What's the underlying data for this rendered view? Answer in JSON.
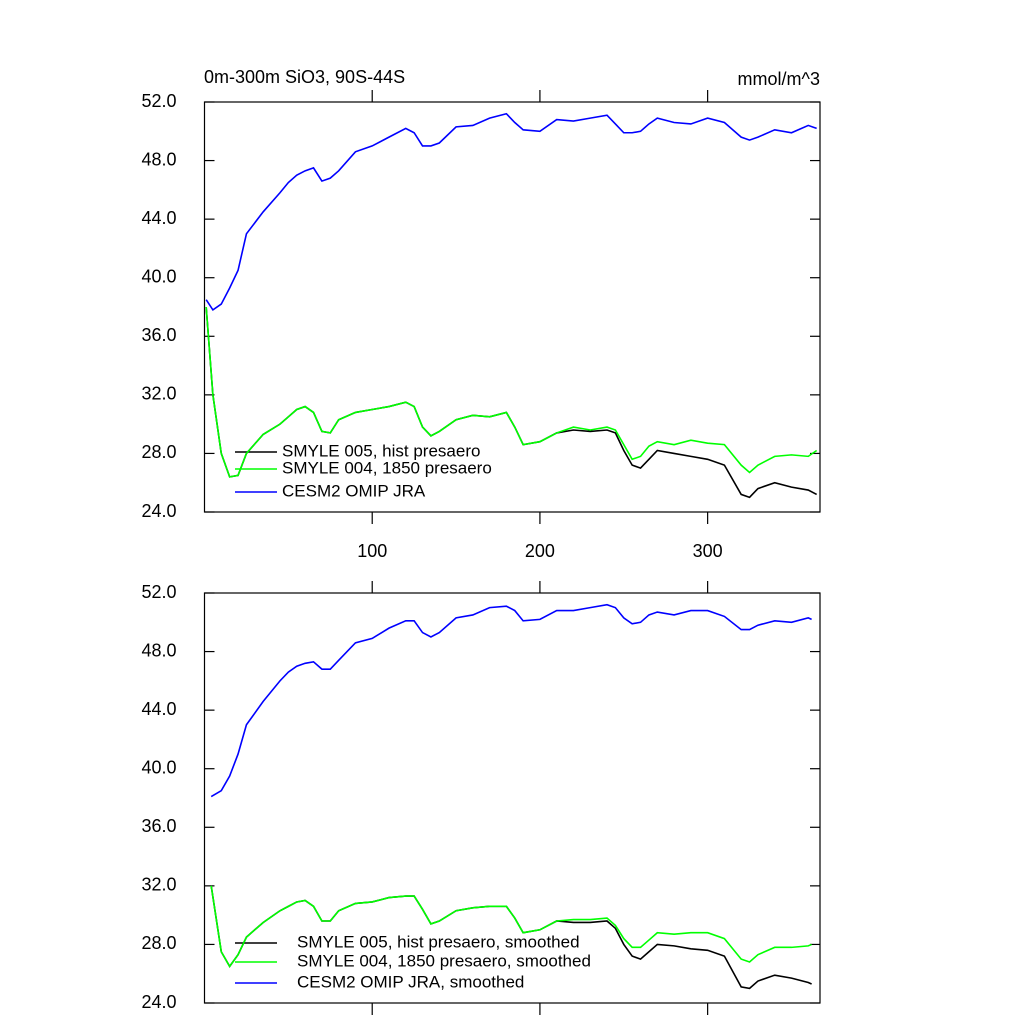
{
  "chart_data": [
    {
      "type": "line",
      "title": "0m-300m SiO3, 90S-44S",
      "units": "mmol/m^3",
      "x": [
        1,
        5,
        10,
        15,
        20,
        25,
        35,
        45,
        50,
        55,
        60,
        65,
        70,
        75,
        80,
        90,
        100,
        110,
        120,
        125,
        130,
        135,
        140,
        150,
        160,
        170,
        180,
        185,
        190,
        200,
        210,
        220,
        230,
        240,
        245,
        250,
        255,
        260,
        265,
        270,
        280,
        290,
        300,
        310,
        320,
        325,
        330,
        340,
        350,
        360,
        365
      ],
      "series": [
        {
          "name": "SMYLE 005, hist presaero",
          "color": "#000000",
          "values": [
            38,
            32,
            28,
            26.4,
            26.5,
            28,
            29.3,
            30,
            30.5,
            31,
            31.2,
            30.8,
            29.5,
            29.4,
            30.3,
            30.8,
            31,
            31.2,
            31.5,
            31.2,
            29.8,
            29.2,
            29.5,
            30.3,
            30.6,
            30.5,
            30.8,
            29.8,
            28.6,
            28.8,
            29.4,
            29.6,
            29.5,
            29.6,
            29.4,
            28.2,
            27.2,
            27,
            27.6,
            28.2,
            28,
            27.8,
            27.6,
            27.2,
            25.2,
            25,
            25.6,
            26,
            25.7,
            25.5,
            25.2
          ]
        },
        {
          "name": "SMYLE 004, 1850 presaero",
          "color": "#00ff00",
          "values": [
            38,
            32,
            28,
            26.4,
            26.5,
            28,
            29.3,
            30,
            30.5,
            31,
            31.2,
            30.8,
            29.5,
            29.4,
            30.3,
            30.8,
            31,
            31.2,
            31.5,
            31.2,
            29.8,
            29.2,
            29.5,
            30.3,
            30.6,
            30.5,
            30.8,
            29.8,
            28.6,
            28.8,
            29.4,
            29.8,
            29.6,
            29.8,
            29.6,
            28.6,
            27.6,
            27.8,
            28.5,
            28.8,
            28.6,
            28.9,
            28.7,
            28.6,
            27.2,
            26.7,
            27.2,
            27.8,
            27.9,
            27.8,
            28.2
          ]
        },
        {
          "name": "CESM2 OMIP JRA",
          "color": "#0000ff",
          "values": [
            38.5,
            37.8,
            38.2,
            39.3,
            40.5,
            43,
            44.5,
            45.8,
            46.5,
            47,
            47.3,
            47.5,
            46.6,
            46.8,
            47.3,
            48.6,
            49,
            49.6,
            50.2,
            49.9,
            49,
            49,
            49.2,
            50.3,
            50.4,
            50.9,
            51.2,
            50.6,
            50.1,
            50,
            50.8,
            50.7,
            50.9,
            51.1,
            50.5,
            49.9,
            49.9,
            50,
            50.5,
            50.9,
            50.6,
            50.5,
            50.9,
            50.6,
            49.6,
            49.4,
            49.6,
            50.1,
            49.9,
            50.4,
            50.2
          ]
        }
      ],
      "xlim": [
        0,
        367
      ],
      "xticks": [
        100,
        200,
        300
      ],
      "ylim": [
        24,
        52
      ],
      "yticks": [
        {
          "value": 24,
          "label": "24.0"
        },
        {
          "value": 28,
          "label": "28.0"
        },
        {
          "value": 32,
          "label": "32.0"
        },
        {
          "value": 36,
          "label": "36.0"
        },
        {
          "value": 40,
          "label": "40.0"
        },
        {
          "value": 44,
          "label": "44.0"
        },
        {
          "value": 48,
          "label": "48.0"
        },
        {
          "value": 52,
          "label": "52.0"
        }
      ],
      "legend": "lower left"
    },
    {
      "type": "line",
      "x": [
        4,
        10,
        15,
        20,
        25,
        35,
        45,
        50,
        55,
        60,
        65,
        70,
        75,
        80,
        90,
        100,
        110,
        120,
        125,
        130,
        135,
        140,
        150,
        160,
        170,
        180,
        185,
        190,
        200,
        210,
        220,
        230,
        240,
        245,
        250,
        255,
        260,
        265,
        270,
        280,
        290,
        300,
        310,
        320,
        325,
        330,
        340,
        350,
        360,
        362
      ],
      "series": [
        {
          "name": "SMYLE 005, hist presaero, smoothed",
          "color": "#000000",
          "values": [
            32,
            27.5,
            26.5,
            27.3,
            28.5,
            29.5,
            30.3,
            30.6,
            30.9,
            31,
            30.6,
            29.6,
            29.6,
            30.3,
            30.8,
            30.9,
            31.2,
            31.3,
            31.3,
            30.4,
            29.4,
            29.6,
            30.3,
            30.5,
            30.6,
            30.6,
            29.8,
            28.8,
            29,
            29.6,
            29.5,
            29.5,
            29.6,
            29.1,
            28,
            27.2,
            27,
            27.5,
            28,
            27.9,
            27.7,
            27.6,
            27.2,
            25.1,
            25,
            25.5,
            25.9,
            25.7,
            25.4,
            25.3
          ]
        },
        {
          "name": "SMYLE 004, 1850 presaero, smoothed",
          "color": "#00ff00",
          "values": [
            32,
            27.5,
            26.5,
            27.3,
            28.5,
            29.5,
            30.3,
            30.6,
            30.9,
            31,
            30.6,
            29.6,
            29.6,
            30.3,
            30.8,
            30.9,
            31.2,
            31.3,
            31.3,
            30.4,
            29.4,
            29.6,
            30.3,
            30.5,
            30.6,
            30.6,
            29.8,
            28.8,
            29,
            29.6,
            29.7,
            29.7,
            29.8,
            29.3,
            28.4,
            27.8,
            27.8,
            28.3,
            28.8,
            28.7,
            28.8,
            28.8,
            28.4,
            27,
            26.8,
            27.3,
            27.8,
            27.8,
            27.9,
            28
          ]
        },
        {
          "name": "CESM2 OMIP JRA, smoothed",
          "color": "#0000ff",
          "values": [
            38.1,
            38.5,
            39.5,
            41,
            43,
            44.6,
            46,
            46.6,
            47,
            47.2,
            47.3,
            46.8,
            46.8,
            47.4,
            48.6,
            48.9,
            49.6,
            50.1,
            50.1,
            49.3,
            49,
            49.3,
            50.3,
            50.5,
            51,
            51.1,
            50.8,
            50.1,
            50.2,
            50.8,
            50.8,
            51,
            51.2,
            51,
            50.3,
            49.9,
            50,
            50.5,
            50.7,
            50.5,
            50.8,
            50.8,
            50.4,
            49.5,
            49.5,
            49.8,
            50.1,
            50,
            50.3,
            50.2
          ]
        }
      ],
      "xlim": [
        0,
        367
      ],
      "xticks": [
        100,
        200,
        300
      ],
      "ylim": [
        24,
        52
      ],
      "yticks": [
        {
          "value": 24,
          "label": "24.0"
        },
        {
          "value": 28,
          "label": "28.0"
        },
        {
          "value": 32,
          "label": "32.0"
        },
        {
          "value": 36,
          "label": "36.0"
        },
        {
          "value": 40,
          "label": "40.0"
        },
        {
          "value": 44,
          "label": "44.0"
        },
        {
          "value": 48,
          "label": "48.0"
        },
        {
          "value": 52,
          "label": "52.0"
        }
      ],
      "legend": "lower left"
    }
  ]
}
